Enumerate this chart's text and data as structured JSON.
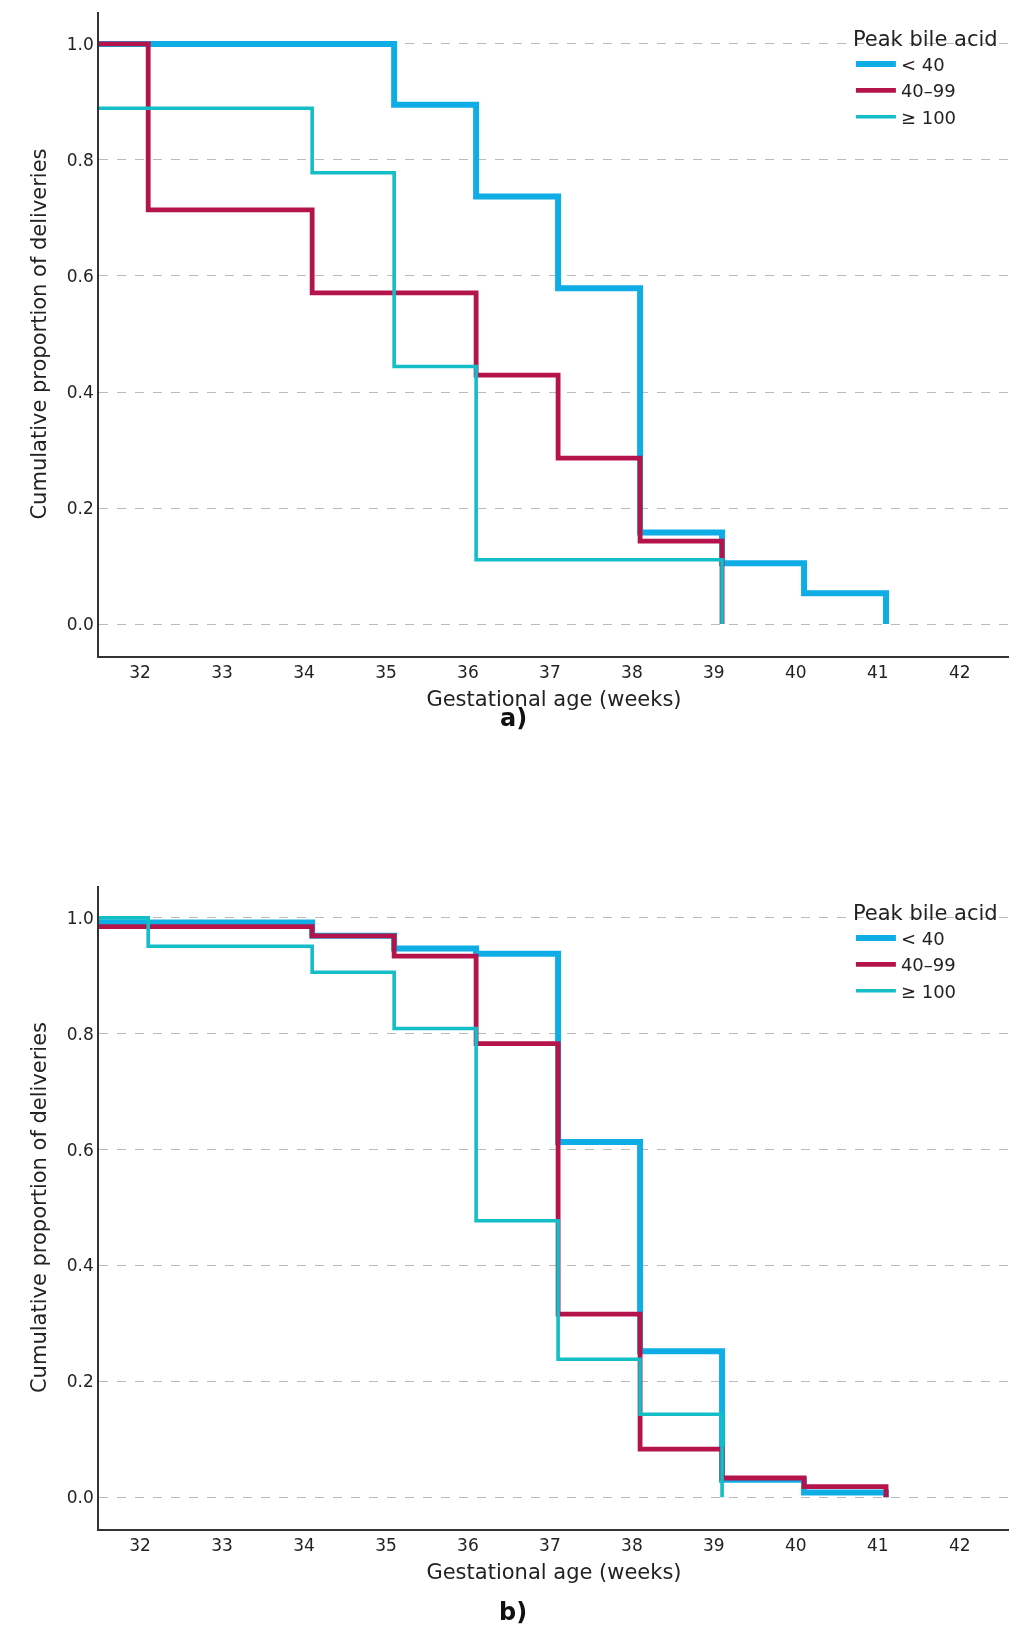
{
  "chart_data": [
    {
      "type": "step",
      "title": "a)",
      "xlabel": "Gestational age (weeks)",
      "ylabel": "Cumulative proportion of deliveries",
      "legend_title": "Peak bile acid",
      "series": [
        {
          "name": "< 40",
          "color": "#0fade6",
          "x": [
            31.5,
            35.1,
            36.1,
            37.1,
            38.1,
            39.1,
            40.1,
            41.1
          ],
          "values": [
            1.0,
            0.895,
            0.737,
            0.579,
            0.158,
            0.105,
            0.053,
            0.0
          ]
        },
        {
          "name": "40–99",
          "color": "#b5134b",
          "x": [
            31.5,
            32.1,
            34.1,
            36.1,
            37.1,
            38.1,
            39.1
          ],
          "values": [
            1.0,
            0.714,
            0.571,
            0.429,
            0.286,
            0.143,
            0.0
          ]
        },
        {
          "name": "≥ 100",
          "color": "#13bec6",
          "x": [
            31.5,
            34.1,
            35.1,
            36.1,
            39.1
          ],
          "values": [
            0.889,
            0.778,
            0.444,
            0.111,
            0.0
          ]
        }
      ],
      "xlim": [
        31.5,
        42.6
      ],
      "ylim": [
        -0.055,
        1.055
      ],
      "xticks": [
        32,
        33,
        34,
        35,
        36,
        37,
        38,
        39,
        40,
        41,
        42
      ],
      "yticks": [
        {
          "value": 0,
          "label": "0.0"
        },
        {
          "value": 0.2,
          "label": "0.2"
        },
        {
          "value": 0.4,
          "label": "0.4"
        },
        {
          "value": 0.6,
          "label": "0.6"
        },
        {
          "value": 0.8,
          "label": "0.8"
        },
        {
          "value": 1,
          "label": "1.0"
        }
      ],
      "grid": "y",
      "legend": "top right",
      "line_style": "solid"
    },
    {
      "type": "step",
      "title": "b)",
      "xlabel": "Gestational age (weeks)",
      "ylabel": "Cumulative proportion of deliveries",
      "legend_title": "Peak bile acid",
      "series": [
        {
          "name": "< 40",
          "color": "#0fade6",
          "x": [
            31.5,
            34.1,
            35.1,
            36.1,
            37.1,
            38.1,
            39.1,
            40.1,
            41.1
          ],
          "values": [
            0.992,
            0.969,
            0.947,
            0.938,
            0.613,
            0.252,
            0.03,
            0.008,
            0.0
          ]
        },
        {
          "name": "40–99",
          "color": "#b5134b",
          "x": [
            31.5,
            34.1,
            35.1,
            36.1,
            37.1,
            38.1,
            39.1,
            40.1,
            41.1
          ],
          "values": [
            0.985,
            0.969,
            0.934,
            0.783,
            0.316,
            0.083,
            0.033,
            0.018,
            0.0
          ]
        },
        {
          "name": "≥ 100",
          "color": "#13bec6",
          "x": [
            31.5,
            32.1,
            34.1,
            35.1,
            36.1,
            37.1,
            38.1,
            39.1
          ],
          "values": [
            1.0,
            0.951,
            0.906,
            0.809,
            0.477,
            0.238,
            0.143,
            0.0
          ]
        }
      ],
      "xlim": [
        31.5,
        42.6
      ],
      "ylim": [
        -0.055,
        1.055
      ],
      "xticks": [
        32,
        33,
        34,
        35,
        36,
        37,
        38,
        39,
        40,
        41,
        42
      ],
      "yticks": [
        {
          "value": 0,
          "label": "0.0"
        },
        {
          "value": 0.2,
          "label": "0.2"
        },
        {
          "value": 0.4,
          "label": "0.4"
        },
        {
          "value": 0.6,
          "label": "0.6"
        },
        {
          "value": 0.8,
          "label": "0.8"
        },
        {
          "value": 1,
          "label": "1.0"
        }
      ],
      "grid": "y",
      "legend": "top right",
      "line_style": "solid"
    }
  ]
}
